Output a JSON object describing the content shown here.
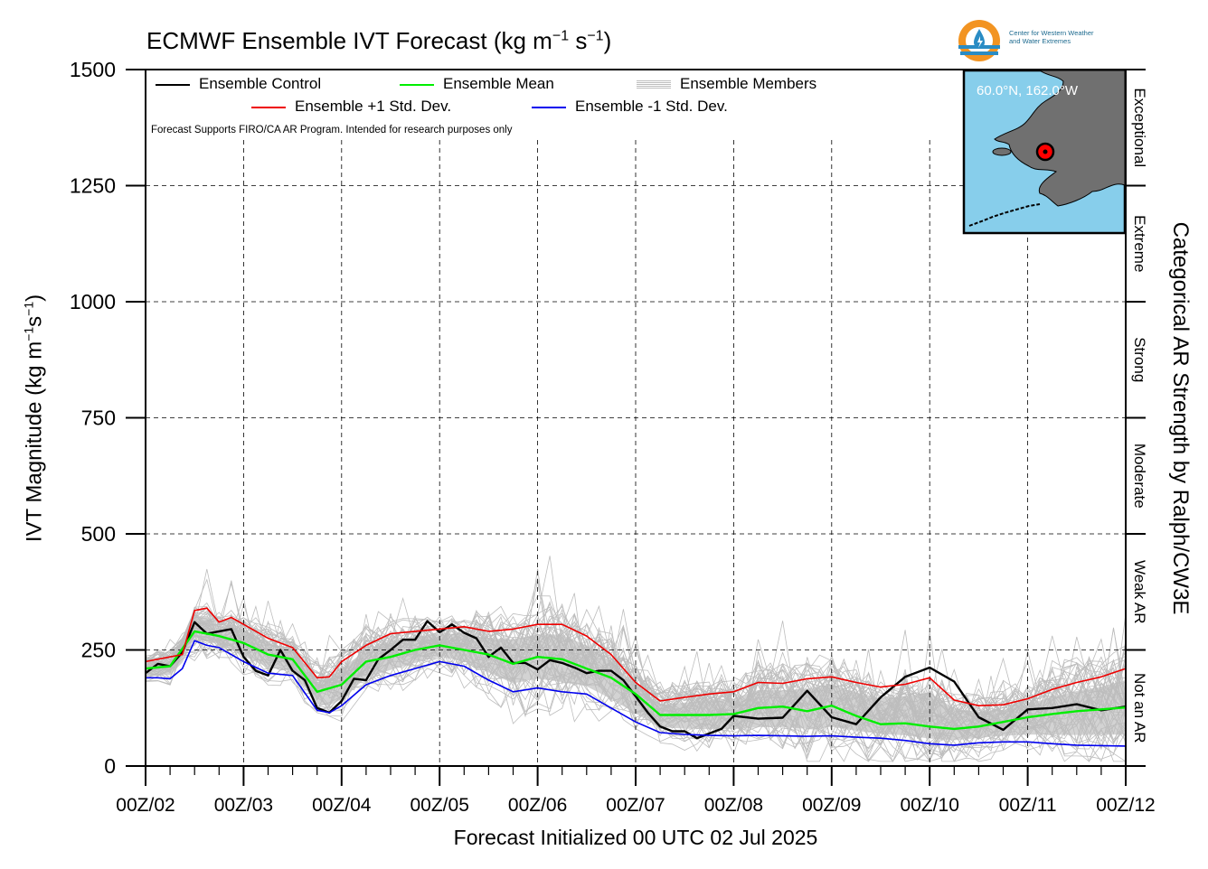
{
  "title": {
    "main": "ECMWF Ensemble IVT Forecast (kg m",
    "exp1": "−1",
    "mid": " s",
    "exp2": "−1",
    "end": ")"
  },
  "logo": {
    "line1": "Center for Western Weather",
    "line2": "and Water Extremes",
    "ring_color": "#f29422",
    "drop_color": "#2a8cc4"
  },
  "ylabel": {
    "main": "IVT Magnitude (kg m",
    "exp1": "−1",
    "mid": "s",
    "exp2": "−1",
    "end": ")"
  },
  "right_label": "Categorical AR Strength by Ralph/CW3E",
  "xlabel": "Forecast Initialized 00 UTC 02 Jul 2025",
  "legend": {
    "control": "Ensemble Control",
    "mean": "Ensemble Mean",
    "members": "Ensemble Members",
    "plus_sd": "Ensemble +1 Std. Dev.",
    "minus_sd": "Ensemble -1 Std. Dev."
  },
  "note": "Forecast Supports FIRO/CA AR Program. Intended for research purposes only",
  "inset_map": {
    "location_label": "60.0°N, 162.0°W",
    "ocean_color": "#87ceeb",
    "land_color": "#707070",
    "marker_color": "#ff0000"
  },
  "colors": {
    "control": "#000000",
    "mean": "#00ee00",
    "plus_sd": "#ee0000",
    "minus_sd": "#0000ee",
    "members": "#bdbdbd"
  },
  "chart_data": {
    "type": "line",
    "ylim": [
      0,
      1500
    ],
    "yticks": [
      0,
      250,
      500,
      750,
      1000,
      1250,
      1500
    ],
    "x_range_hours": [
      0,
      240
    ],
    "xtick_labels": [
      "00Z/02",
      "00Z/03",
      "00Z/04",
      "00Z/05",
      "00Z/06",
      "00Z/07",
      "00Z/08",
      "00Z/09",
      "00Z/10",
      "00Z/11",
      "00Z/12"
    ],
    "categories": [
      {
        "label": "Not an AR",
        "from": 0,
        "to": 250
      },
      {
        "label": "Weak AR",
        "from": 250,
        "to": 500
      },
      {
        "label": "Moderate",
        "from": 500,
        "to": 750
      },
      {
        "label": "Strong",
        "from": 750,
        "to": 1000
      },
      {
        "label": "Extreme",
        "from": 1000,
        "to": 1250
      },
      {
        "label": "Exceptional",
        "from": 1250,
        "to": 1500
      }
    ],
    "grid": true,
    "legend_position": "top-left",
    "series": [
      {
        "name": "Ensemble Control",
        "color": "#000000",
        "x": [
          0,
          3,
          6,
          9,
          12,
          15,
          18,
          21,
          24,
          27,
          30,
          33,
          36,
          39,
          42,
          45,
          48,
          51,
          54,
          57,
          60,
          63,
          66,
          69,
          72,
          75,
          78,
          81,
          84,
          87,
          90,
          93,
          96,
          99,
          102,
          105,
          108,
          111,
          114,
          117,
          120,
          123,
          126,
          129,
          132,
          135,
          138,
          141,
          144,
          150,
          156,
          162,
          168,
          174,
          180,
          186,
          192,
          198,
          204,
          210,
          216,
          222,
          228,
          234,
          240
        ],
        "values": [
          200,
          220,
          215,
          245,
          310,
          285,
          290,
          295,
          235,
          205,
          195,
          250,
          205,
          185,
          125,
          115,
          140,
          188,
          185,
          230,
          250,
          272,
          272,
          312,
          288,
          305,
          287,
          275,
          235,
          255,
          222,
          222,
          208,
          228,
          222,
          212,
          200,
          205,
          205,
          185,
          150,
          115,
          85,
          75,
          75,
          60,
          70,
          80,
          108,
          102,
          104,
          162,
          105,
          90,
          148,
          192,
          212,
          182,
          105,
          78,
          122,
          125,
          133,
          120,
          128
        ]
      },
      {
        "name": "Ensemble Mean",
        "color": "#00ee00",
        "x": [
          0,
          6,
          12,
          18,
          24,
          30,
          36,
          42,
          48,
          54,
          60,
          66,
          72,
          78,
          84,
          90,
          96,
          102,
          108,
          114,
          120,
          126,
          132,
          138,
          144,
          150,
          156,
          162,
          168,
          174,
          180,
          186,
          192,
          198,
          204,
          210,
          216,
          222,
          228,
          234,
          240
        ],
        "values": [
          210,
          215,
          290,
          280,
          265,
          240,
          230,
          160,
          175,
          225,
          235,
          250,
          260,
          250,
          240,
          220,
          235,
          230,
          210,
          190,
          155,
          110,
          110,
          110,
          112,
          125,
          128,
          118,
          130,
          108,
          90,
          92,
          85,
          80,
          85,
          95,
          105,
          112,
          118,
          122,
          126
        ]
      },
      {
        "name": "Ensemble +1 Std. Dev.",
        "color": "#ee0000",
        "x": [
          0,
          6,
          9,
          12,
          15,
          18,
          21,
          24,
          30,
          36,
          42,
          45,
          48,
          54,
          60,
          66,
          72,
          78,
          84,
          90,
          96,
          102,
          108,
          114,
          120,
          126,
          132,
          138,
          144,
          150,
          156,
          162,
          168,
          174,
          180,
          186,
          192,
          198,
          204,
          210,
          216,
          222,
          228,
          234,
          240
        ],
        "values": [
          225,
          235,
          240,
          335,
          340,
          310,
          320,
          305,
          275,
          255,
          190,
          192,
          225,
          260,
          285,
          290,
          295,
          300,
          290,
          295,
          305,
          305,
          280,
          240,
          180,
          140,
          148,
          155,
          160,
          180,
          178,
          188,
          192,
          180,
          170,
          176,
          190,
          142,
          130,
          132,
          145,
          165,
          180,
          192,
          210
        ]
      },
      {
        "name": "Ensemble -1 Std. Dev.",
        "color": "#0000ee",
        "x": [
          0,
          3,
          6,
          9,
          12,
          15,
          18,
          24,
          30,
          36,
          42,
          45,
          48,
          54,
          60,
          66,
          72,
          78,
          84,
          90,
          96,
          102,
          108,
          114,
          120,
          126,
          132,
          138,
          144,
          150,
          156,
          162,
          168,
          174,
          180,
          186,
          192,
          198,
          204,
          210,
          216,
          222,
          228,
          234,
          240
        ],
        "values": [
          190,
          190,
          188,
          210,
          270,
          260,
          255,
          225,
          200,
          195,
          120,
          115,
          130,
          175,
          195,
          210,
          225,
          215,
          185,
          160,
          168,
          160,
          155,
          125,
          95,
          72,
          68,
          66,
          65,
          66,
          65,
          64,
          65,
          62,
          60,
          55,
          48,
          45,
          50,
          52,
          52,
          48,
          45,
          44,
          43
        ]
      }
    ]
  }
}
